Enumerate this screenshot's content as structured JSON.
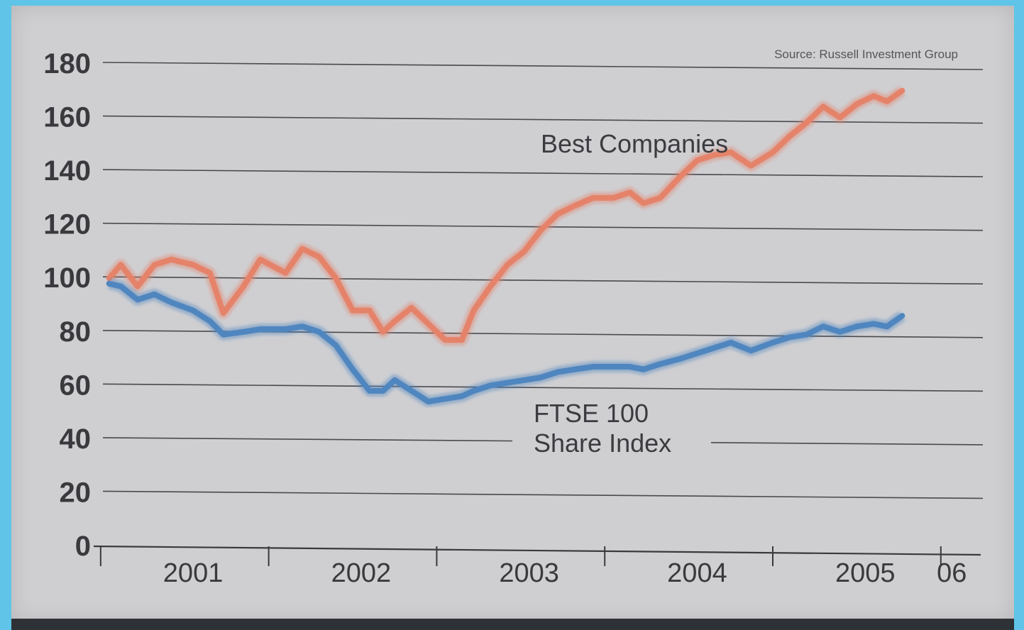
{
  "source_note": "Source: Russell Investment Group",
  "colors": {
    "best_companies": "#e5836a",
    "ftse100": "#4f86bf",
    "background": "#cfcfd2"
  },
  "chart_data": {
    "type": "line",
    "title": "",
    "xlabel": "",
    "ylabel": "",
    "ylim": [
      0,
      180
    ],
    "yticks": [
      0,
      20,
      40,
      60,
      80,
      100,
      120,
      140,
      160,
      180
    ],
    "x_tick_labels": [
      "2001",
      "2002",
      "2003",
      "2004",
      "2005",
      "06"
    ],
    "xlim": [
      2000.9,
      2006.2
    ],
    "grid": true,
    "legend": "inline labels",
    "series": [
      {
        "name": "Best Companies",
        "label_lines": [
          "Best Companies"
        ],
        "color": "#e5836a",
        "points": [
          [
            2001.0,
            100
          ],
          [
            2001.07,
            105
          ],
          [
            2001.17,
            97
          ],
          [
            2001.27,
            105
          ],
          [
            2001.37,
            107
          ],
          [
            2001.5,
            105
          ],
          [
            2001.6,
            102
          ],
          [
            2001.68,
            87
          ],
          [
            2001.8,
            97
          ],
          [
            2001.9,
            107
          ],
          [
            2002.05,
            102
          ],
          [
            2002.15,
            111
          ],
          [
            2002.25,
            108
          ],
          [
            2002.35,
            100
          ],
          [
            2002.45,
            88
          ],
          [
            2002.55,
            88
          ],
          [
            2002.63,
            80
          ],
          [
            2002.7,
            84
          ],
          [
            2002.8,
            89
          ],
          [
            2002.9,
            83
          ],
          [
            2003.0,
            77
          ],
          [
            2003.1,
            77
          ],
          [
            2003.17,
            88
          ],
          [
            2003.27,
            97
          ],
          [
            2003.37,
            105
          ],
          [
            2003.47,
            110
          ],
          [
            2003.57,
            118
          ],
          [
            2003.67,
            124
          ],
          [
            2003.77,
            127
          ],
          [
            2003.88,
            130
          ],
          [
            2004.0,
            130
          ],
          [
            2004.1,
            132
          ],
          [
            2004.18,
            128
          ],
          [
            2004.28,
            130
          ],
          [
            2004.4,
            138
          ],
          [
            2004.5,
            144
          ],
          [
            2004.6,
            146
          ],
          [
            2004.7,
            147
          ],
          [
            2004.82,
            142
          ],
          [
            2004.95,
            147
          ],
          [
            2005.05,
            153
          ],
          [
            2005.15,
            158
          ],
          [
            2005.25,
            164
          ],
          [
            2005.35,
            160
          ],
          [
            2005.45,
            165
          ],
          [
            2005.55,
            168
          ],
          [
            2005.63,
            166
          ],
          [
            2005.72,
            170
          ]
        ]
      },
      {
        "name": "FTSE 100 Share Index",
        "label_lines": [
          "FTSE 100",
          "Share Index"
        ],
        "color": "#4f86bf",
        "points": [
          [
            2001.0,
            98
          ],
          [
            2001.07,
            97
          ],
          [
            2001.17,
            92
          ],
          [
            2001.27,
            94
          ],
          [
            2001.37,
            91
          ],
          [
            2001.5,
            88
          ],
          [
            2001.6,
            84
          ],
          [
            2001.68,
            79
          ],
          [
            2001.8,
            80
          ],
          [
            2001.9,
            81
          ],
          [
            2002.05,
            81
          ],
          [
            2002.15,
            82
          ],
          [
            2002.25,
            80
          ],
          [
            2002.35,
            75
          ],
          [
            2002.45,
            66
          ],
          [
            2002.55,
            58
          ],
          [
            2002.63,
            58
          ],
          [
            2002.7,
            62
          ],
          [
            2002.8,
            58
          ],
          [
            2002.9,
            54
          ],
          [
            2003.0,
            55
          ],
          [
            2003.1,
            56
          ],
          [
            2003.17,
            58
          ],
          [
            2003.27,
            60
          ],
          [
            2003.37,
            61
          ],
          [
            2003.47,
            62
          ],
          [
            2003.57,
            63
          ],
          [
            2003.67,
            65
          ],
          [
            2003.77,
            66
          ],
          [
            2003.88,
            67
          ],
          [
            2004.0,
            67
          ],
          [
            2004.1,
            67
          ],
          [
            2004.18,
            66
          ],
          [
            2004.28,
            68
          ],
          [
            2004.4,
            70
          ],
          [
            2004.5,
            72
          ],
          [
            2004.6,
            74
          ],
          [
            2004.7,
            76
          ],
          [
            2004.82,
            73
          ],
          [
            2004.95,
            76
          ],
          [
            2005.05,
            78
          ],
          [
            2005.15,
            79
          ],
          [
            2005.25,
            82
          ],
          [
            2005.35,
            80
          ],
          [
            2005.45,
            82
          ],
          [
            2005.55,
            83
          ],
          [
            2005.63,
            82
          ],
          [
            2005.72,
            86
          ]
        ]
      }
    ]
  }
}
